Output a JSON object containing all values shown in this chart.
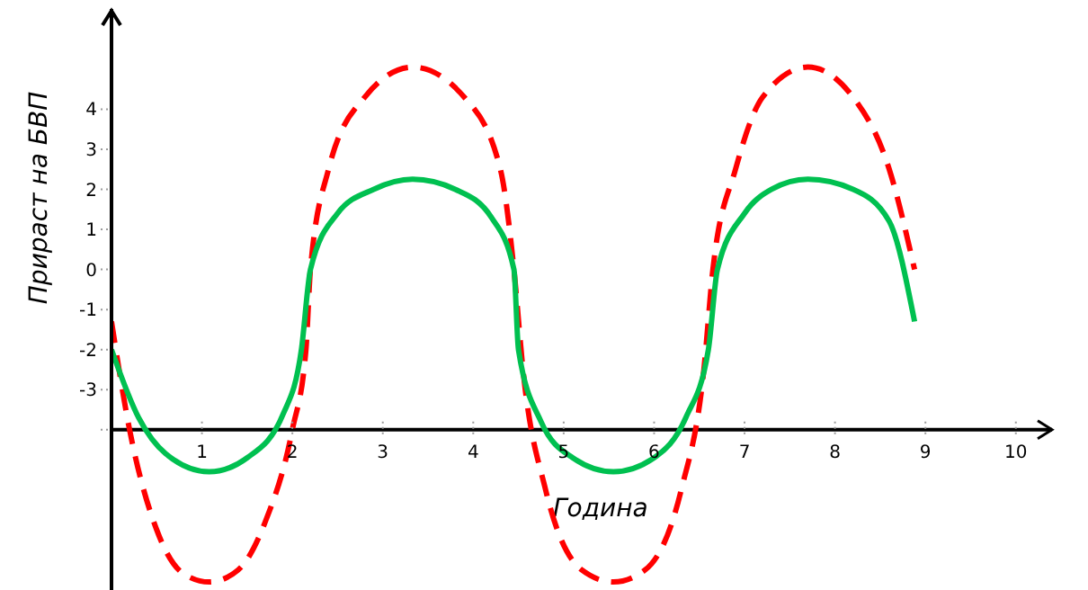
{
  "chart_data": {
    "type": "line",
    "xlabel": "Година",
    "ylabel": "Прираст на БВП",
    "xlim": [
      0,
      10.4
    ],
    "xticks": [
      1,
      2,
      3,
      4,
      5,
      6,
      7,
      8,
      9,
      10
    ],
    "ylim": [
      -8,
      6.5
    ],
    "yticks": [
      {
        "value": -4,
        "label": null
      },
      -3,
      -2,
      -1,
      0,
      1,
      2,
      3,
      4
    ],
    "grid": false,
    "legend": false,
    "series": [
      {
        "color": "#ff0000",
        "line_style": "dashed",
        "x": [
          0,
          0.2,
          0.5,
          0.8,
          1.08,
          1.4,
          1.7,
          2.0,
          2.15,
          2.2,
          2.4,
          2.8,
          3.33,
          3.9,
          4.3,
          4.45,
          4.55,
          4.8,
          5.2,
          5.55,
          5.9,
          6.3,
          6.55,
          6.65,
          6.9,
          7.2,
          7.7,
          8.2,
          8.6,
          8.88
        ],
        "values": [
          -1.3,
          -4,
          -6.5,
          -7.6,
          -7.8,
          -7.5,
          -6.3,
          -4,
          -2,
          0,
          2.5,
          4.3,
          5.05,
          4.3,
          2.5,
          0,
          -2.5,
          -5.5,
          -7.5,
          -7.8,
          -7.5,
          -5.5,
          -2.5,
          0,
          2.5,
          4.3,
          5.05,
          4.3,
          2.5,
          0
        ]
      },
      {
        "color": "#00c050",
        "line_style": "solid",
        "x": [
          0,
          0.3,
          0.6,
          1.08,
          1.5,
          1.9,
          2.1,
          2.2,
          2.5,
          2.9,
          3.33,
          3.8,
          4.2,
          4.45,
          4.5,
          4.75,
          5.1,
          5.55,
          6.0,
          6.35,
          6.6,
          6.7,
          7.0,
          7.3,
          7.7,
          8.2,
          8.6,
          8.88
        ],
        "values": [
          -2,
          -3.7,
          -4.6,
          -5.05,
          -4.7,
          -3.6,
          -2,
          0,
          1.4,
          2,
          2.25,
          2,
          1.3,
          0,
          -2,
          -3.8,
          -4.7,
          -5.05,
          -4.7,
          -3.7,
          -2,
          0,
          1.4,
          2,
          2.25,
          2,
          1.2,
          -1.3
        ]
      }
    ]
  }
}
